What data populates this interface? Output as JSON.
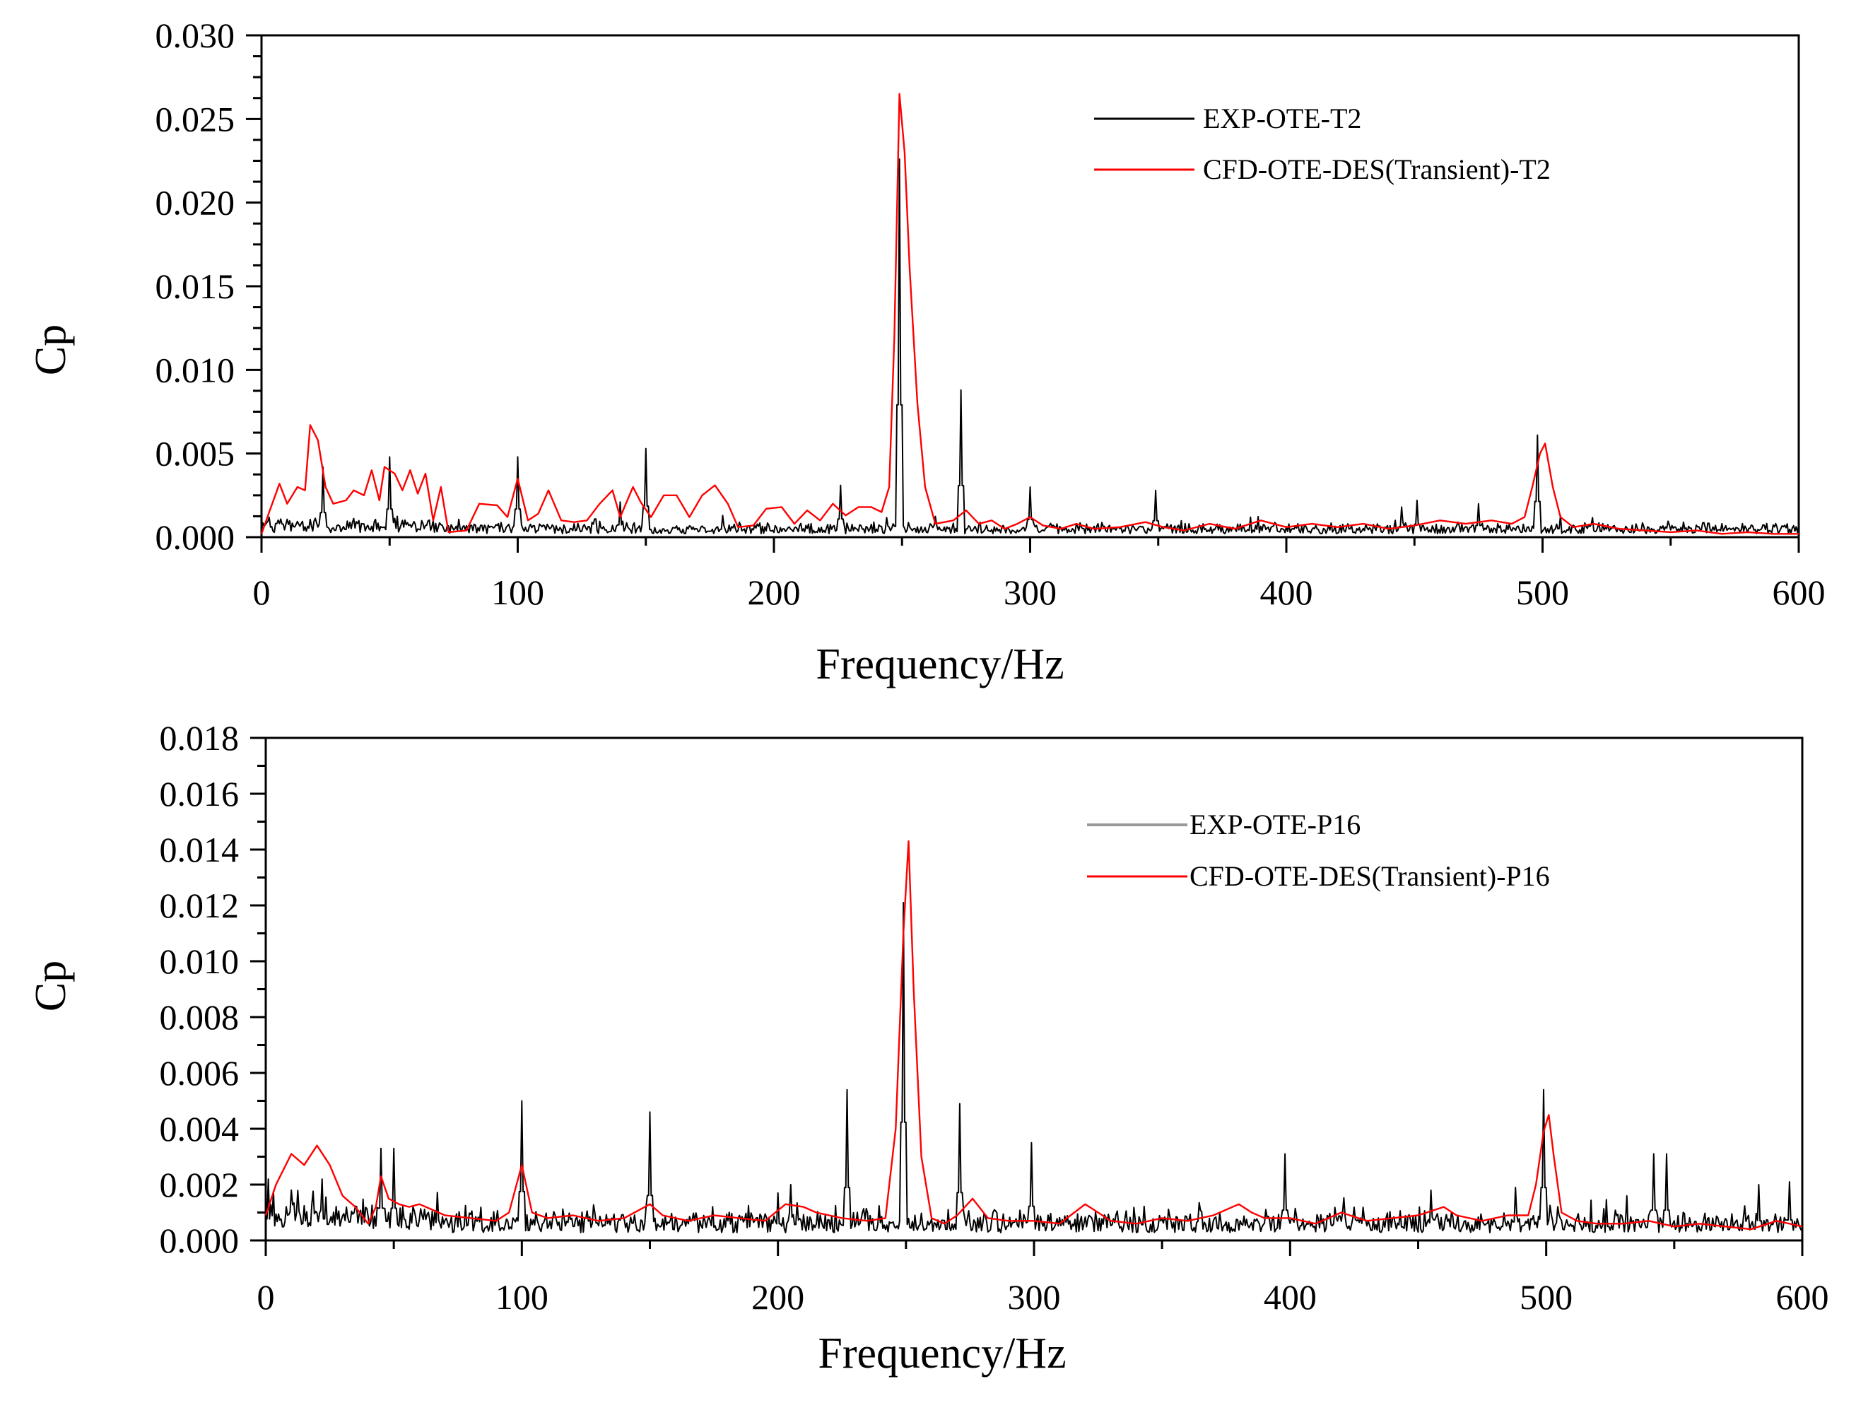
{
  "chart_data": [
    {
      "type": "line",
      "xlabel": "Frequency/Hz",
      "ylabel": "Cp",
      "xlim": [
        0,
        600
      ],
      "ylim": [
        0,
        0.03
      ],
      "x_ticks": [
        0,
        100,
        200,
        300,
        400,
        500,
        600
      ],
      "x_tick_labels": [
        "0",
        "100",
        "200",
        "300",
        "400",
        "500",
        "600"
      ],
      "y_ticks": [
        0,
        0.005,
        0.01,
        0.015,
        0.02,
        0.025,
        0.03
      ],
      "y_tick_labels": [
        "0.000",
        "0.005",
        "0.010",
        "0.015",
        "0.020",
        "0.025",
        "0.030"
      ],
      "legend_position": "top-right",
      "series": [
        {
          "name": "EXP-OTE-T2",
          "color": "#000000",
          "baseline": 0.0006,
          "noise": 0.0007,
          "peaks": [
            [
              24,
              0.0042
            ],
            [
              50,
              0.0048
            ],
            [
              100,
              0.0048
            ],
            [
              140,
              0.0021
            ],
            [
              150,
              0.0053
            ],
            [
              180,
              0.0013
            ],
            [
              226,
              0.0031
            ],
            [
              249,
              0.0226
            ],
            [
              273,
              0.0088
            ],
            [
              300,
              0.003
            ],
            [
              349,
              0.0028
            ],
            [
              445,
              0.0018
            ],
            [
              451,
              0.0022
            ],
            [
              475,
              0.002
            ],
            [
              498,
              0.0061
            ],
            [
              555,
              0.0009
            ]
          ]
        },
        {
          "name": "CFD-OTE-DES(Transient)-T2",
          "color": "#ff0000",
          "points": [
            [
              0,
              0.0002
            ],
            [
              3,
              0.0015
            ],
            [
              7,
              0.0032
            ],
            [
              10,
              0.002
            ],
            [
              14,
              0.003
            ],
            [
              17,
              0.0028
            ],
            [
              19,
              0.0067
            ],
            [
              22,
              0.0058
            ],
            [
              25,
              0.003
            ],
            [
              28,
              0.002
            ],
            [
              33,
              0.0022
            ],
            [
              36,
              0.0028
            ],
            [
              40,
              0.0025
            ],
            [
              43,
              0.004
            ],
            [
              46,
              0.0022
            ],
            [
              48,
              0.0042
            ],
            [
              52,
              0.0038
            ],
            [
              55,
              0.0028
            ],
            [
              58,
              0.004
            ],
            [
              61,
              0.0026
            ],
            [
              64,
              0.0038
            ],
            [
              67,
              0.001
            ],
            [
              70,
              0.003
            ],
            [
              73,
              0.0003
            ],
            [
              80,
              0.0004
            ],
            [
              85,
              0.002
            ],
            [
              92,
              0.0019
            ],
            [
              96,
              0.0012
            ],
            [
              100,
              0.0035
            ],
            [
              104,
              0.001
            ],
            [
              108,
              0.0014
            ],
            [
              112,
              0.0028
            ],
            [
              117,
              0.001
            ],
            [
              122,
              0.0009
            ],
            [
              127,
              0.001
            ],
            [
              132,
              0.002
            ],
            [
              137,
              0.0028
            ],
            [
              140,
              0.0012
            ],
            [
              145,
              0.003
            ],
            [
              148,
              0.0021
            ],
            [
              152,
              0.0012
            ],
            [
              157,
              0.0025
            ],
            [
              162,
              0.0025
            ],
            [
              167,
              0.0012
            ],
            [
              172,
              0.0025
            ],
            [
              177,
              0.0031
            ],
            [
              182,
              0.002
            ],
            [
              186,
              0.0006
            ],
            [
              192,
              0.0007
            ],
            [
              197,
              0.0017
            ],
            [
              203,
              0.0018
            ],
            [
              208,
              0.0008
            ],
            [
              213,
              0.0016
            ],
            [
              218,
              0.001
            ],
            [
              223,
              0.002
            ],
            [
              228,
              0.0013
            ],
            [
              233,
              0.0018
            ],
            [
              238,
              0.0018
            ],
            [
              242,
              0.0015
            ],
            [
              245,
              0.003
            ],
            [
              247,
              0.012
            ],
            [
              249,
              0.0265
            ],
            [
              251,
              0.023
            ],
            [
              253,
              0.016
            ],
            [
              256,
              0.008
            ],
            [
              259,
              0.003
            ],
            [
              263,
              0.0008
            ],
            [
              270,
              0.001
            ],
            [
              275,
              0.0016
            ],
            [
              280,
              0.0008
            ],
            [
              285,
              0.001
            ],
            [
              290,
              0.0005
            ],
            [
              295,
              0.0008
            ],
            [
              300,
              0.0012
            ],
            [
              305,
              0.0007
            ],
            [
              312,
              0.0005
            ],
            [
              318,
              0.0008
            ],
            [
              325,
              0.0005
            ],
            [
              335,
              0.0006
            ],
            [
              345,
              0.0009
            ],
            [
              352,
              0.0006
            ],
            [
              360,
              0.0004
            ],
            [
              370,
              0.0008
            ],
            [
              380,
              0.0005
            ],
            [
              390,
              0.001
            ],
            [
              400,
              0.0006
            ],
            [
              410,
              0.0008
            ],
            [
              420,
              0.0006
            ],
            [
              430,
              0.0008
            ],
            [
              440,
              0.0005
            ],
            [
              450,
              0.0007
            ],
            [
              460,
              0.001
            ],
            [
              470,
              0.0008
            ],
            [
              480,
              0.001
            ],
            [
              488,
              0.0008
            ],
            [
              493,
              0.0012
            ],
            [
              496,
              0.003
            ],
            [
              499,
              0.005
            ],
            [
              501,
              0.0056
            ],
            [
              504,
              0.003
            ],
            [
              507,
              0.0012
            ],
            [
              512,
              0.0006
            ],
            [
              520,
              0.0008
            ],
            [
              530,
              0.0005
            ],
            [
              540,
              0.0004
            ],
            [
              550,
              0.0003
            ],
            [
              560,
              0.0004
            ],
            [
              570,
              0.0002
            ],
            [
              580,
              0.0003
            ],
            [
              590,
              0.0002
            ],
            [
              600,
              0.0002
            ]
          ]
        }
      ]
    },
    {
      "type": "line",
      "xlabel": "Frequency/Hz",
      "ylabel": "Cp",
      "xlim": [
        0,
        600
      ],
      "ylim": [
        0,
        0.018
      ],
      "x_ticks": [
        0,
        100,
        200,
        300,
        400,
        500,
        600
      ],
      "x_tick_labels": [
        "0",
        "100",
        "200",
        "300",
        "400",
        "500",
        "600"
      ],
      "y_ticks": [
        0,
        0.002,
        0.004,
        0.006,
        0.008,
        0.01,
        0.012,
        0.014,
        0.016,
        0.018
      ],
      "y_tick_labels": [
        "0.000",
        "0.002",
        "0.004",
        "0.006",
        "0.008",
        "0.010",
        "0.012",
        "0.014",
        "0.016",
        "0.018"
      ],
      "legend_position": "top-right",
      "series": [
        {
          "name": "EXP-OTE-P16",
          "color": "#000000",
          "legend_color": "#999999",
          "baseline": 0.0008,
          "noise": 0.0008,
          "peaks": [
            [
              1,
              0.0022
            ],
            [
              10,
              0.0018
            ],
            [
              22,
              0.0022
            ],
            [
              45,
              0.0033
            ],
            [
              50,
              0.0033
            ],
            [
              67,
              0.0017
            ],
            [
              100,
              0.005
            ],
            [
              150,
              0.0046
            ],
            [
              200,
              0.0017
            ],
            [
              205,
              0.002
            ],
            [
              227,
              0.0054
            ],
            [
              249,
              0.0121
            ],
            [
              271,
              0.0049
            ],
            [
              299,
              0.0035
            ],
            [
              398,
              0.0031
            ],
            [
              455,
              0.0018
            ],
            [
              488,
              0.0019
            ],
            [
              499,
              0.0054
            ],
            [
              542,
              0.0031
            ],
            [
              547,
              0.0031
            ],
            [
              583,
              0.002
            ],
            [
              595,
              0.0021
            ]
          ]
        },
        {
          "name": "CFD-OTE-DES(Transient)-P16",
          "color": "#ff0000",
          "points": [
            [
              0,
              0.0009
            ],
            [
              4,
              0.002
            ],
            [
              10,
              0.0031
            ],
            [
              15,
              0.0027
            ],
            [
              20,
              0.0034
            ],
            [
              25,
              0.0027
            ],
            [
              30,
              0.0016
            ],
            [
              35,
              0.0012
            ],
            [
              40,
              0.0006
            ],
            [
              43,
              0.0012
            ],
            [
              45,
              0.0023
            ],
            [
              48,
              0.0015
            ],
            [
              52,
              0.0013
            ],
            [
              56,
              0.0012
            ],
            [
              60,
              0.0013
            ],
            [
              65,
              0.0011
            ],
            [
              70,
              0.0009
            ],
            [
              80,
              0.0008
            ],
            [
              90,
              0.0007
            ],
            [
              95,
              0.001
            ],
            [
              100,
              0.0027
            ],
            [
              104,
              0.001
            ],
            [
              110,
              0.0008
            ],
            [
              120,
              0.0009
            ],
            [
              130,
              0.0007
            ],
            [
              140,
              0.0008
            ],
            [
              150,
              0.0013
            ],
            [
              155,
              0.0009
            ],
            [
              165,
              0.0007
            ],
            [
              175,
              0.0009
            ],
            [
              185,
              0.0008
            ],
            [
              195,
              0.0007
            ],
            [
              203,
              0.0013
            ],
            [
              210,
              0.0012
            ],
            [
              215,
              0.001
            ],
            [
              225,
              0.0008
            ],
            [
              235,
              0.0007
            ],
            [
              242,
              0.0008
            ],
            [
              246,
              0.004
            ],
            [
              249,
              0.011
            ],
            [
              251,
              0.0143
            ],
            [
              253,
              0.009
            ],
            [
              256,
              0.003
            ],
            [
              260,
              0.0008
            ],
            [
              265,
              0.0006
            ],
            [
              270,
              0.0009
            ],
            [
              276,
              0.0015
            ],
            [
              282,
              0.0008
            ],
            [
              290,
              0.0007
            ],
            [
              300,
              0.0007
            ],
            [
              310,
              0.0006
            ],
            [
              320,
              0.0013
            ],
            [
              330,
              0.0007
            ],
            [
              340,
              0.0006
            ],
            [
              350,
              0.0008
            ],
            [
              360,
              0.0007
            ],
            [
              370,
              0.0009
            ],
            [
              380,
              0.0013
            ],
            [
              385,
              0.001
            ],
            [
              390,
              0.0008
            ],
            [
              400,
              0.0008
            ],
            [
              410,
              0.0006
            ],
            [
              420,
              0.001
            ],
            [
              430,
              0.0007
            ],
            [
              440,
              0.0008
            ],
            [
              450,
              0.0009
            ],
            [
              460,
              0.0012
            ],
            [
              465,
              0.0009
            ],
            [
              475,
              0.0007
            ],
            [
              485,
              0.0009
            ],
            [
              493,
              0.0009
            ],
            [
              496,
              0.002
            ],
            [
              499,
              0.0039
            ],
            [
              501,
              0.0045
            ],
            [
              503,
              0.003
            ],
            [
              506,
              0.001
            ],
            [
              512,
              0.0007
            ],
            [
              520,
              0.0006
            ],
            [
              530,
              0.0006
            ],
            [
              540,
              0.0007
            ],
            [
              550,
              0.0005
            ],
            [
              560,
              0.0006
            ],
            [
              570,
              0.0005
            ],
            [
              580,
              0.0004
            ],
            [
              590,
              0.0007
            ],
            [
              600,
              0.0005
            ]
          ]
        }
      ]
    }
  ]
}
